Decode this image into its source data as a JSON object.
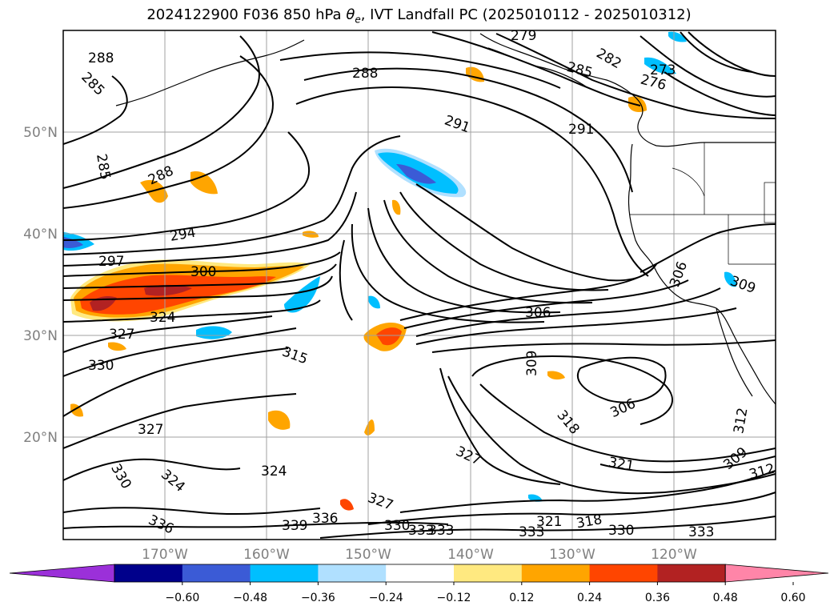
{
  "title": {
    "prefix": "2024122900 F036 850 hPa ",
    "theta": "θ",
    "sub": "e",
    "suffix": ", IVT Landfall PC (2025010112 - 2025010312)"
  },
  "lat_labels": [
    "50°N",
    "40°N",
    "30°N",
    "20°N"
  ],
  "lon_labels": [
    "170°W",
    "160°W",
    "150°W",
    "140°W",
    "130°W",
    "120°W"
  ],
  "colorbar": {
    "colors": [
      "#9b30d9",
      "#00008b",
      "#3b5bd6",
      "#00bfff",
      "#b0e0ff",
      "#ffffff",
      "#ffe980",
      "#ffa500",
      "#ff4500",
      "#b22222",
      "#ff85a8"
    ],
    "tick_labels": [
      "−0.60",
      "−0.48",
      "−0.36",
      "−0.24",
      "−0.12",
      "0.12",
      "0.24",
      "0.36",
      "0.48",
      "0.60"
    ]
  },
  "contour_labels": [
    "288",
    "285",
    "285",
    "288",
    "294",
    "297",
    "300",
    "324",
    "327",
    "330",
    "315",
    "327",
    "330",
    "324",
    "336",
    "339",
    "336",
    "330",
    "333",
    "324",
    "327",
    "327",
    "288",
    "291",
    "291",
    "279",
    "282",
    "285",
    "273",
    "276",
    "306",
    "309",
    "306",
    "318",
    "321",
    "321",
    "318",
    "330",
    "333",
    "312",
    "309",
    "309",
    "312",
    "333",
    "333",
    "306"
  ]
}
